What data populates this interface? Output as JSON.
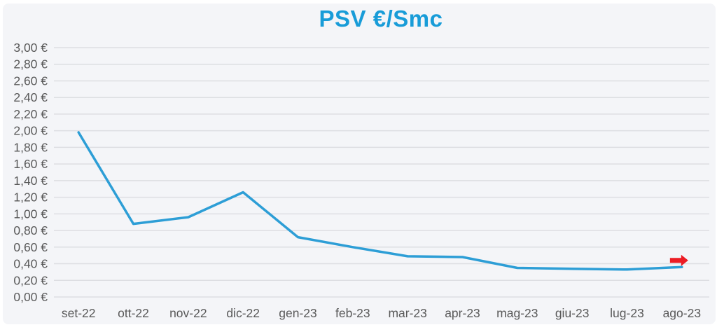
{
  "page": {
    "background": "#ffffff",
    "panel_background": "#f4f5f8"
  },
  "chart_data": {
    "type": "line",
    "title": "PSV €/Smc",
    "title_color": "#189cd8",
    "categories": [
      "set-22",
      "ott-22",
      "nov-22",
      "dic-22",
      "gen-23",
      "feb-23",
      "mar-23",
      "apr-23",
      "mag-23",
      "giu-23",
      "lug-23",
      "ago-23"
    ],
    "values": [
      1.98,
      0.88,
      0.96,
      1.26,
      0.72,
      0.6,
      0.49,
      0.48,
      0.35,
      0.34,
      0.33,
      0.36
    ],
    "line_color": "#2d9ed6",
    "line_width": 3.5,
    "ylim": [
      0,
      3.0
    ],
    "ytick_step": 0.2,
    "y_tick_labels": [
      "0,00 €",
      "0,20 €",
      "0,40 €",
      "0,60 €",
      "0,80 €",
      "1,00 €",
      "1,20 €",
      "1,40 €",
      "1,60 €",
      "1,80 €",
      "2,00 €",
      "2,20 €",
      "2,40 €",
      "2,60 €",
      "2,80 €",
      "3,00 €"
    ],
    "xlabel": "",
    "ylabel": "",
    "grid": true,
    "grid_color": "#dddee2",
    "tick_label_color": "#595959",
    "legend": "none",
    "annotations": [
      {
        "type": "arrow-right",
        "color": "#ec1c24",
        "at_category": "ago-23"
      }
    ]
  }
}
